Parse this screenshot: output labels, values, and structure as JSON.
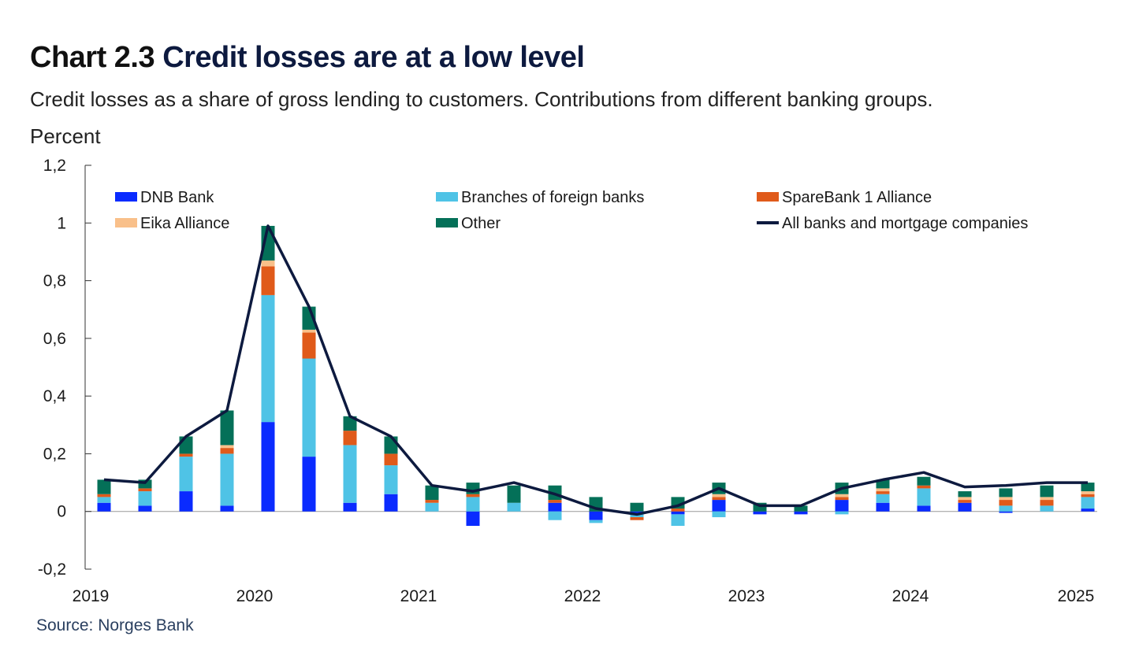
{
  "header": {
    "chart_number": "Chart 2.3",
    "title": "Credit losses are at a low level",
    "subtitle": "Credit losses as a share of gross lending to customers. Contributions from different banking groups.",
    "unit": "Percent"
  },
  "source": "Source: Norges Bank",
  "colors": {
    "dnb": "#0a2bff",
    "foreign": "#4fc3e6",
    "sparebank": "#e05a1a",
    "eika": "#f9c08a",
    "other": "#047058",
    "total": "#0d1a3f"
  },
  "chart_data": {
    "type": "bar",
    "stacked": true,
    "title": "Credit losses are at a low level",
    "ylabel": "Percent",
    "ylim": [
      -0.2,
      1.2
    ],
    "yticks": [
      -0.2,
      0,
      0.2,
      0.4,
      0.6,
      0.8,
      1,
      1.2
    ],
    "ytick_labels": [
      "-0,2",
      "0",
      "0,2",
      "0,4",
      "0,6",
      "0,8",
      "1",
      "1,2"
    ],
    "xticks": [
      "2019",
      "2020",
      "2021",
      "2022",
      "2023",
      "2024",
      "2025"
    ],
    "categories": [
      "2019 Q1",
      "2019 Q2",
      "2019 Q3",
      "2019 Q4",
      "2020 Q1",
      "2020 Q2",
      "2020 Q3",
      "2020 Q4",
      "2021 Q1",
      "2021 Q2",
      "2021 Q3",
      "2021 Q4",
      "2022 Q1",
      "2022 Q2",
      "2022 Q3",
      "2022 Q4",
      "2023 Q1",
      "2023 Q2",
      "2023 Q3",
      "2023 Q4",
      "2024 Q1",
      "2024 Q2",
      "2024 Q3",
      "2024 Q4",
      "2025 Q1"
    ],
    "legend_position": "top",
    "series": [
      {
        "key": "dnb",
        "name": "DNB Bank",
        "kind": "bar",
        "values": [
          0.03,
          0.02,
          0.07,
          0.02,
          0.31,
          0.19,
          0.03,
          0.06,
          0.0,
          -0.05,
          0.0,
          0.03,
          -0.03,
          -0.01,
          -0.01,
          0.04,
          -0.01,
          -0.01,
          0.04,
          0.03,
          0.02,
          0.03,
          -0.005,
          0.0,
          0.01
        ]
      },
      {
        "key": "foreign",
        "name": "Branches of foreign banks",
        "kind": "bar",
        "values": [
          0.02,
          0.05,
          0.12,
          0.18,
          0.44,
          0.34,
          0.2,
          0.1,
          0.03,
          0.05,
          0.03,
          -0.03,
          -0.01,
          -0.01,
          -0.04,
          -0.02,
          0.0,
          0.0,
          -0.01,
          0.03,
          0.06,
          0.0,
          0.02,
          0.02,
          0.04
        ]
      },
      {
        "key": "sparebank",
        "name": "SpareBank 1 Alliance",
        "kind": "bar",
        "values": [
          0.01,
          0.01,
          0.01,
          0.02,
          0.1,
          0.09,
          0.05,
          0.04,
          0.01,
          0.01,
          0.0,
          0.01,
          0.0,
          -0.01,
          0.01,
          0.01,
          0.0,
          0.0,
          0.01,
          0.01,
          0.01,
          0.01,
          0.02,
          0.02,
          0.01
        ]
      },
      {
        "key": "eika",
        "name": "Eika Alliance",
        "kind": "bar",
        "values": [
          0.0,
          0.0,
          0.0,
          0.01,
          0.02,
          0.01,
          0.0,
          0.0,
          0.0,
          0.0,
          0.0,
          0.0,
          0.0,
          0.0,
          0.0,
          0.01,
          0.0,
          0.0,
          0.01,
          0.01,
          0.0,
          0.01,
          0.01,
          0.01,
          0.01
        ]
      },
      {
        "key": "other",
        "name": "Other",
        "kind": "bar",
        "values": [
          0.05,
          0.03,
          0.06,
          0.12,
          0.12,
          0.08,
          0.05,
          0.06,
          0.05,
          0.04,
          0.06,
          0.05,
          0.05,
          0.03,
          0.04,
          0.04,
          0.03,
          0.02,
          0.04,
          0.03,
          0.03,
          0.02,
          0.03,
          0.04,
          0.03
        ]
      },
      {
        "key": "total",
        "name": "All banks and mortgage companies",
        "kind": "line",
        "values": [
          0.11,
          0.1,
          0.26,
          0.35,
          0.99,
          0.71,
          0.33,
          0.26,
          0.09,
          0.07,
          0.1,
          0.06,
          0.01,
          -0.01,
          0.02,
          0.08,
          0.02,
          0.02,
          0.08,
          0.11,
          0.135,
          0.085,
          0.09,
          0.1,
          0.1
        ]
      }
    ]
  }
}
